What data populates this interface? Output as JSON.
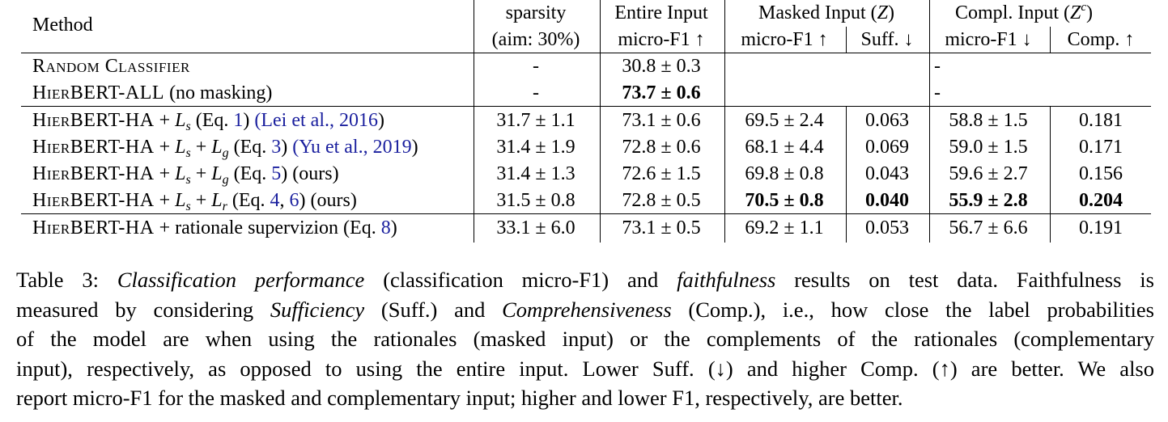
{
  "header": {
    "method": "Method",
    "sparsity_1": "sparsity",
    "sparsity_2": "(aim: 30%)",
    "entire_1": "Entire Input",
    "entire_2": "micro-F1 ↑",
    "masked_group": "Masked Input (",
    "masked_sym": "Z",
    "masked_close": ")",
    "masked_f1": "micro-F1 ↑",
    "masked_suff": "Suff. ↓",
    "compl_group": "Compl. Input (",
    "compl_sym": "Z",
    "compl_sup": "c",
    "compl_close": ")",
    "compl_f1": "micro-F1 ↓",
    "compl_comp": "Comp. ↑"
  },
  "rows": [
    {
      "method": "Random Classifier",
      "sparsity": "-",
      "entire": "30.8 ± 0.3",
      "masked_merged": "",
      "compl_merged": "-"
    },
    {
      "method": "HierBERT-ALL",
      "method_suffix": " (no masking)",
      "sparsity": "-",
      "entire": "73.7 ± 0.6",
      "masked_merged": "",
      "compl_merged": "-"
    },
    {
      "method": "HierBERT-HA",
      "plus1": " + ",
      "L1": "L",
      "L1sub": "s",
      "eq": " (Eq. ",
      "eqnum": "1",
      "eqclose": ") ",
      "cite": "(Lei et al., ",
      "cite_year": "2016",
      "cite_close": ")",
      "sparsity": "31.7 ± 1.1",
      "entire": "73.1 ± 0.6",
      "masked_f1": "69.5 ± 2.4",
      "suff": "0.063",
      "compl_f1": "58.8 ± 1.5",
      "comp": "0.181"
    },
    {
      "method": "HierBERT-HA",
      "plus1": " + ",
      "L1": "L",
      "L1sub": "s",
      "plus2": " + ",
      "L2": "L",
      "L2sub": "g",
      "eq": " (Eq. ",
      "eqnum": "3",
      "eqclose": ") ",
      "cite": "(Yu et al., ",
      "cite_year": "2019",
      "cite_close": ")",
      "sparsity": "31.4 ± 1.9",
      "entire": "72.8 ± 0.6",
      "masked_f1": "68.1 ± 4.4",
      "suff": "0.069",
      "compl_f1": "59.0 ± 1.5",
      "comp": "0.171"
    },
    {
      "method": "HierBERT-HA",
      "plus1": " + ",
      "L1": "L",
      "L1sub": "s",
      "plus2": " + ",
      "L2": "L",
      "L2sub": "g",
      "eq": " (Eq. ",
      "eqnum": "5",
      "eqclose": ") (ours)",
      "sparsity": "31.4 ± 1.3",
      "entire": "72.6 ± 1.5",
      "masked_f1": "69.8 ± 0.8",
      "suff": "0.043",
      "compl_f1": "59.6 ± 2.7",
      "comp": "0.156"
    },
    {
      "method": "HierBERT-HA",
      "plus1": " + ",
      "L1": "L",
      "L1sub": "s",
      "plus2": " + ",
      "L2": "L",
      "L2sub": "r",
      "eq": " (Eq. ",
      "eqnum": "4",
      "eqsep": ", ",
      "eqnum2": "6",
      "eqclose": ") (ours)",
      "sparsity": "31.5 ± 0.8",
      "entire": "72.8 ± 0.5",
      "masked_f1": "70.5 ± 0.8",
      "suff": "0.040",
      "compl_f1": "55.9 ± 2.8",
      "comp": "0.204"
    },
    {
      "method": "HierBERT-HA",
      "plus1": " + rationale supervizion (Eq. ",
      "eqnum": "8",
      "eqclose": ")",
      "sparsity": "33.1 ± 6.0",
      "entire": "73.1 ± 0.5",
      "masked_f1": "69.2 ± 1.1",
      "suff": "0.053",
      "compl_f1": "56.7 ± 6.6",
      "comp": "0.191"
    }
  ],
  "caption": {
    "prefix": "Table 3: ",
    "it1": "Classification performance",
    "t1": " (classification micro-F1) and ",
    "it2": "faithfulness",
    "t2": " results on test data. Faithfulness is",
    "t3": "measured by considering ",
    "it3": "Sufficiency",
    "t4": " (Suff.) and ",
    "it4": "Comprehensiveness",
    "t5": " (Comp.), i.e., how close the label probabilities",
    "t6": "of the model are when using the rationales (masked input) or the complements of the rationales (complementary",
    "t7": "input), respectively, as opposed to using the entire input. Lower Suff. (↓) and higher Comp. (↑) are better. We also",
    "t8": "report micro-F1 for the masked and complementary input; higher and lower F1, respectively, are better."
  }
}
